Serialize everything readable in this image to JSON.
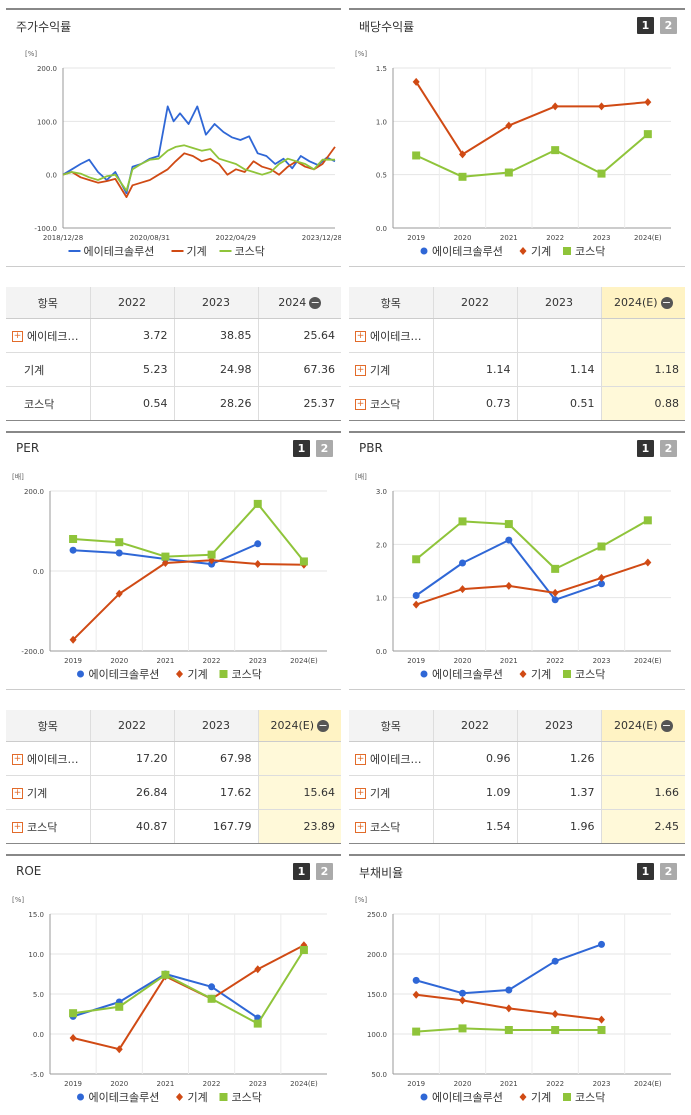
{
  "ui": {
    "page_btn_1": "1",
    "page_btn_2": "2",
    "expand_symbol": "+",
    "collapse_symbol": "−"
  },
  "legend": [
    "에이테크솔루션",
    "기계",
    "코스닥"
  ],
  "colors": {
    "company": "#2f67d6",
    "industry": "#d04a14",
    "kosdaq": "#8fc43a"
  },
  "chart_data": [
    {
      "id": "stock_return",
      "title": "주가수익률",
      "type": "line",
      "unit": "[%]",
      "ylim": [
        -100,
        200
      ],
      "yticks": [
        "200.0",
        "100.0",
        "0.0",
        "-100.0"
      ],
      "xticks": [
        "2018/12/28",
        "2020/08/31",
        "2022/04/29",
        "2023/12/28"
      ],
      "x_range": [
        "2018-12-28",
        "2024-03-29"
      ],
      "series": [
        {
          "name": "에이테크솔루션",
          "color": "#2f67d6",
          "x": [
            "2018-12-28",
            "2019-03-01",
            "2019-05-01",
            "2019-07-01",
            "2019-09-01",
            "2019-11-01",
            "2020-01-01",
            "2020-03-20",
            "2020-05-01",
            "2020-07-01",
            "2020-09-01",
            "2020-11-01",
            "2021-01-04",
            "2021-02-15",
            "2021-04-01",
            "2021-06-01",
            "2021-08-01",
            "2021-10-01",
            "2021-12-01",
            "2022-02-01",
            "2022-04-01",
            "2022-06-01",
            "2022-08-01",
            "2022-10-01",
            "2022-12-01",
            "2023-02-01",
            "2023-04-01",
            "2023-06-01",
            "2023-08-01",
            "2023-10-01",
            "2023-12-01",
            "2024-02-01",
            "2024-03-29"
          ],
          "y": [
            0,
            10,
            20,
            28,
            5,
            -10,
            5,
            -35,
            15,
            20,
            30,
            35,
            128,
            100,
            115,
            95,
            128,
            75,
            95,
            80,
            70,
            65,
            72,
            40,
            35,
            20,
            30,
            12,
            35,
            25,
            18,
            32,
            25
          ]
        },
        {
          "name": "기계",
          "color": "#d04a14",
          "x": [
            "2018-12-28",
            "2019-03-01",
            "2019-05-01",
            "2019-07-01",
            "2019-09-01",
            "2019-11-01",
            "2020-01-01",
            "2020-03-20",
            "2020-05-01",
            "2020-07-01",
            "2020-09-01",
            "2020-11-01",
            "2021-01-04",
            "2021-03-01",
            "2021-05-01",
            "2021-07-01",
            "2021-09-01",
            "2021-11-01",
            "2022-01-01",
            "2022-03-01",
            "2022-05-01",
            "2022-07-01",
            "2022-09-01",
            "2022-11-01",
            "2023-01-01",
            "2023-03-01",
            "2023-05-01",
            "2023-07-01",
            "2023-09-01",
            "2023-11-01",
            "2024-01-01",
            "2024-03-29"
          ],
          "y": [
            0,
            5,
            -5,
            -10,
            -15,
            -12,
            -8,
            -42,
            -20,
            -15,
            -10,
            0,
            10,
            25,
            40,
            35,
            25,
            30,
            20,
            0,
            10,
            5,
            25,
            15,
            10,
            0,
            15,
            25,
            15,
            10,
            20,
            52
          ]
        },
        {
          "name": "코스닥",
          "color": "#8fc43a",
          "x": [
            "2018-12-28",
            "2019-03-01",
            "2019-05-01",
            "2019-07-01",
            "2019-09-01",
            "2019-11-01",
            "2020-01-01",
            "2020-03-20",
            "2020-05-01",
            "2020-07-01",
            "2020-09-01",
            "2020-11-01",
            "2021-01-04",
            "2021-03-01",
            "2021-05-01",
            "2021-07-01",
            "2021-09-01",
            "2021-11-01",
            "2022-01-01",
            "2022-03-01",
            "2022-05-01",
            "2022-07-01",
            "2022-09-01",
            "2022-11-01",
            "2023-01-01",
            "2023-03-01",
            "2023-05-01",
            "2023-07-01",
            "2023-09-01",
            "2023-11-01",
            "2024-01-01",
            "2024-03-29"
          ],
          "y": [
            0,
            5,
            2,
            -5,
            -10,
            -3,
            0,
            -30,
            10,
            20,
            28,
            30,
            45,
            52,
            55,
            50,
            45,
            48,
            30,
            25,
            20,
            10,
            5,
            0,
            5,
            20,
            30,
            25,
            20,
            10,
            28,
            28
          ]
        }
      ]
    },
    {
      "id": "dividend",
      "title": "배당수익률",
      "type": "line",
      "unit": "[%]",
      "ylim": [
        0,
        1.5
      ],
      "yticks": [
        "1.5",
        "1.0",
        "0.5",
        "0.0"
      ],
      "categories": [
        "2019",
        "2020",
        "2021",
        "2022",
        "2023",
        "2024(E)"
      ],
      "series": [
        {
          "name": "기계",
          "color": "#d04a14",
          "marker": "diamond",
          "values": [
            1.37,
            0.69,
            0.96,
            1.14,
            1.14,
            1.18
          ]
        },
        {
          "name": "코스닥",
          "color": "#8fc43a",
          "marker": "square",
          "values": [
            0.68,
            0.48,
            0.52,
            0.73,
            0.51,
            0.88
          ]
        }
      ]
    },
    {
      "id": "per",
      "title": "PER",
      "type": "line",
      "unit": "[배]",
      "ylim": [
        -200,
        200
      ],
      "yticks": [
        "200.0",
        "0.0",
        "-200.0"
      ],
      "categories": [
        "2019",
        "2020",
        "2021",
        "2022",
        "2023",
        "2024(E)"
      ],
      "series": [
        {
          "name": "에이테크솔루션",
          "color": "#2f67d6",
          "marker": "circle",
          "values": [
            52,
            45,
            30,
            17.2,
            67.98,
            null
          ]
        },
        {
          "name": "기계",
          "color": "#d04a14",
          "marker": "diamond",
          "values": [
            -172,
            -57,
            20,
            26.84,
            17.62,
            15.64
          ]
        },
        {
          "name": "코스닥",
          "color": "#8fc43a",
          "marker": "square",
          "values": [
            80,
            72,
            36,
            40.87,
            167.79,
            23.89
          ]
        }
      ]
    },
    {
      "id": "pbr",
      "title": "PBR",
      "type": "line",
      "unit": "[배]",
      "ylim": [
        0,
        3
      ],
      "yticks": [
        "3.0",
        "2.0",
        "1.0",
        "0.0"
      ],
      "categories": [
        "2019",
        "2020",
        "2021",
        "2022",
        "2023",
        "2024(E)"
      ],
      "series": [
        {
          "name": "에이테크솔루션",
          "color": "#2f67d6",
          "marker": "circle",
          "values": [
            1.04,
            1.65,
            2.08,
            0.96,
            1.26,
            null
          ]
        },
        {
          "name": "기계",
          "color": "#d04a14",
          "marker": "diamond",
          "values": [
            0.87,
            1.16,
            1.22,
            1.09,
            1.37,
            1.66
          ]
        },
        {
          "name": "코스닥",
          "color": "#8fc43a",
          "marker": "square",
          "values": [
            1.72,
            2.43,
            2.38,
            1.54,
            1.96,
            2.45
          ]
        }
      ]
    },
    {
      "id": "roe",
      "title": "ROE",
      "type": "line",
      "unit": "[%]",
      "ylim": [
        -5,
        15
      ],
      "yticks": [
        "15.0",
        "10.0",
        "5.0",
        "0.0",
        "-5.0"
      ],
      "categories": [
        "2019",
        "2020",
        "2021",
        "2022",
        "2023",
        "2024(E)"
      ],
      "series": [
        {
          "name": "에이테크솔루션",
          "color": "#2f67d6",
          "marker": "circle",
          "values": [
            2.2,
            4.0,
            7.5,
            5.9,
            2.0,
            null
          ]
        },
        {
          "name": "기계",
          "color": "#d04a14",
          "marker": "diamond",
          "values": [
            -0.5,
            -1.9,
            7.2,
            4.4,
            8.1,
            11.1
          ]
        },
        {
          "name": "코스닥",
          "color": "#8fc43a",
          "marker": "square",
          "values": [
            2.6,
            3.4,
            7.4,
            4.4,
            1.3,
            10.5
          ]
        }
      ]
    },
    {
      "id": "debt",
      "title": "부채비율",
      "type": "line",
      "unit": "[%]",
      "ylim": [
        50,
        250
      ],
      "yticks": [
        "250.0",
        "200.0",
        "150.0",
        "100.0",
        "50.0"
      ],
      "categories": [
        "2019",
        "2020",
        "2021",
        "2022",
        "2023",
        "2024(E)"
      ],
      "series": [
        {
          "name": "에이테크솔루션",
          "color": "#2f67d6",
          "marker": "circle",
          "values": [
            167,
            151,
            155,
            191,
            212,
            null
          ]
        },
        {
          "name": "기계",
          "color": "#d04a14",
          "marker": "diamond",
          "values": [
            149,
            142,
            132,
            125,
            118,
            null
          ]
        },
        {
          "name": "코스닥",
          "color": "#8fc43a",
          "marker": "square",
          "values": [
            103,
            107,
            105,
            105,
            105,
            null
          ]
        }
      ]
    }
  ],
  "tables": [
    {
      "id": "stock_return_table",
      "headers": [
        "항목",
        "2022",
        "2023",
        "2024"
      ],
      "collapse": true,
      "rows": [
        {
          "name": "에이테크…",
          "expand": true,
          "values": [
            "3.72",
            "38.85",
            "25.64"
          ]
        },
        {
          "name": "기계",
          "expand": false,
          "values": [
            "5.23",
            "24.98",
            "67.36"
          ]
        },
        {
          "name": "코스닥",
          "expand": false,
          "values": [
            "0.54",
            "28.26",
            "25.37"
          ]
        }
      ],
      "highlight_last": false
    },
    {
      "id": "dividend_table",
      "headers": [
        "항목",
        "2022",
        "2023",
        "2024(E)"
      ],
      "collapse": true,
      "rows": [
        {
          "name": "에이테크…",
          "expand": true,
          "values": [
            "",
            "",
            ""
          ]
        },
        {
          "name": "기계",
          "expand": true,
          "values": [
            "1.14",
            "1.14",
            "1.18"
          ]
        },
        {
          "name": "코스닥",
          "expand": true,
          "values": [
            "0.73",
            "0.51",
            "0.88"
          ]
        }
      ],
      "highlight_last": true
    },
    {
      "id": "per_table",
      "headers": [
        "항목",
        "2022",
        "2023",
        "2024(E)"
      ],
      "collapse": true,
      "rows": [
        {
          "name": "에이테크…",
          "expand": true,
          "values": [
            "17.20",
            "67.98",
            ""
          ]
        },
        {
          "name": "기계",
          "expand": true,
          "values": [
            "26.84",
            "17.62",
            "15.64"
          ]
        },
        {
          "name": "코스닥",
          "expand": true,
          "values": [
            "40.87",
            "167.79",
            "23.89"
          ]
        }
      ],
      "highlight_last": true
    },
    {
      "id": "pbr_table",
      "headers": [
        "항목",
        "2022",
        "2023",
        "2024(E)"
      ],
      "collapse": true,
      "rows": [
        {
          "name": "에이테크…",
          "expand": true,
          "values": [
            "0.96",
            "1.26",
            ""
          ]
        },
        {
          "name": "기계",
          "expand": true,
          "values": [
            "1.09",
            "1.37",
            "1.66"
          ]
        },
        {
          "name": "코스닥",
          "expand": true,
          "values": [
            "1.54",
            "1.96",
            "2.45"
          ]
        }
      ],
      "highlight_last": true
    }
  ]
}
